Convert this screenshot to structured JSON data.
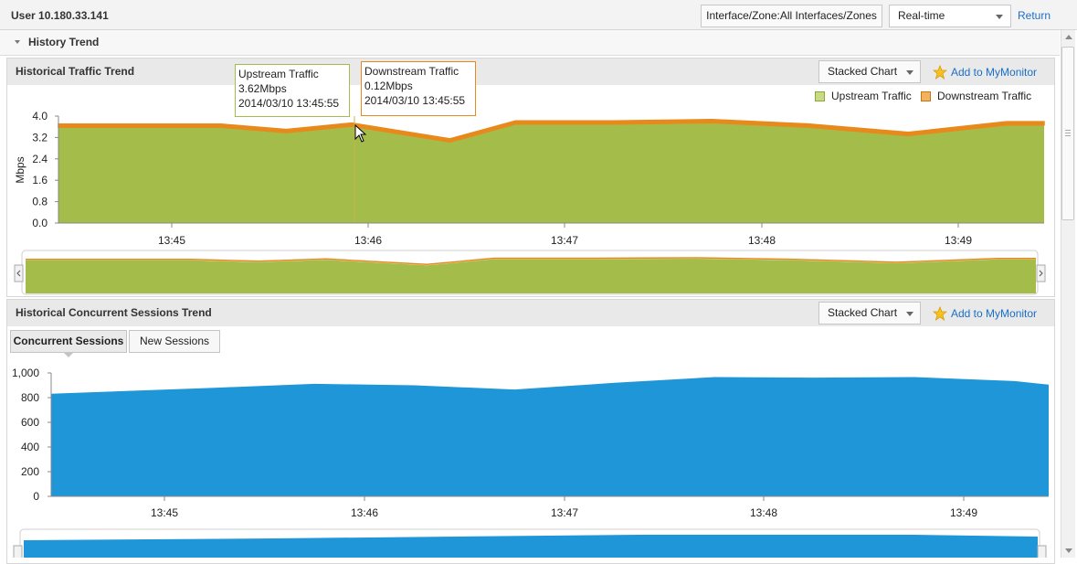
{
  "top": {
    "user_title": "User 10.180.33.141",
    "interface_zone": "Interface/Zone:All Interfaces/Zones",
    "time_select": "Real-time",
    "return_label": "Return"
  },
  "history": {
    "title": "History Trend"
  },
  "traffic_panel": {
    "title": "Historical Traffic Trend",
    "chart_type_button": "Stacked Chart",
    "mymonitor_label": "Add to MyMonitor",
    "legend": [
      {
        "name": "Upstream Traffic",
        "color": "#a4bd4a"
      },
      {
        "name": "Downstream Traffic",
        "color": "#e8891c"
      }
    ],
    "tooltip_up": {
      "title": "Upstream Traffic",
      "value": "3.62Mbps",
      "time": "2014/03/10 13:45:55"
    },
    "tooltip_down": {
      "title": "Downstream Traffic",
      "value": "0.12Mbps",
      "time": "2014/03/10 13:45:55"
    }
  },
  "sessions_panel": {
    "title": "Historical Concurrent Sessions Trend",
    "chart_type_button": "Stacked Chart",
    "mymonitor_label": "Add to MyMonitor",
    "tabs": [
      "Concurrent Sessions",
      "New Sessions"
    ],
    "active_tab": "Concurrent Sessions"
  },
  "chart_data": [
    {
      "type": "area",
      "stacked": true,
      "ylabel": "Mbps",
      "ylim": [
        0,
        4.0
      ],
      "yticks": [
        "0.0",
        "0.8",
        "1.6",
        "2.4",
        "3.2",
        "4.0"
      ],
      "xticks": [
        "13:45",
        "13:46",
        "13:47",
        "13:48",
        "13:49"
      ],
      "x": [
        "13:44:45",
        "13:45:15",
        "13:45:35",
        "13:45:55",
        "13:46:25",
        "13:46:45",
        "13:47:15",
        "13:47:45",
        "13:48:15",
        "13:48:45",
        "13:49:15",
        "13:49:25"
      ],
      "series": [
        {
          "name": "Upstream Traffic",
          "color": "#a4bd4a",
          "values": [
            3.58,
            3.58,
            3.38,
            3.62,
            3.03,
            3.7,
            3.7,
            3.75,
            3.58,
            3.27,
            3.67,
            3.67
          ]
        },
        {
          "name": "Downstream Traffic",
          "color": "#e8891c",
          "values": [
            0.12,
            0.12,
            0.12,
            0.12,
            0.12,
            0.12,
            0.12,
            0.12,
            0.12,
            0.12,
            0.12,
            0.12
          ]
        }
      ]
    },
    {
      "type": "area",
      "ylim": [
        0,
        1000
      ],
      "yticks": [
        "0",
        "200",
        "400",
        "600",
        "800",
        "1,000"
      ],
      "xticks": [
        "13:45",
        "13:46",
        "13:47",
        "13:48",
        "13:49"
      ],
      "x": [
        "13:44:45",
        "13:45:15",
        "13:45:45",
        "13:46:15",
        "13:46:45",
        "13:47:15",
        "13:47:45",
        "13:48:15",
        "13:48:45",
        "13:49:15",
        "13:49:25"
      ],
      "series": [
        {
          "name": "Concurrent Sessions",
          "color": "#1e96d8",
          "values": [
            832,
            880,
            912,
            900,
            866,
            920,
            967,
            962,
            967,
            934,
            905
          ]
        }
      ]
    }
  ]
}
